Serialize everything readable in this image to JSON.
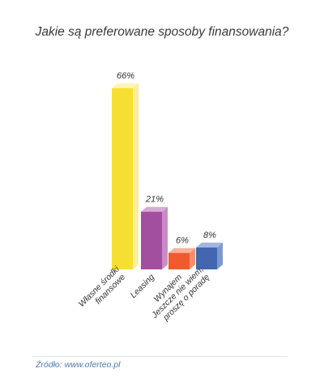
{
  "chart_data": {
    "type": "bar",
    "title": "Jakie są preferowane sposoby finansowania?",
    "categories": [
      [
        "Własne środki",
        "finansowe"
      ],
      [
        "Leasing"
      ],
      [
        "Wynajem"
      ],
      [
        "Jeszcze nie wiem,",
        "proszę o poradę"
      ]
    ],
    "values": [
      66,
      21,
      6,
      8
    ],
    "value_labels": [
      "66%",
      "21%",
      "6%",
      "8%"
    ],
    "unit": "%",
    "ylim": [
      0,
      66
    ],
    "grid": false,
    "colors": [
      {
        "front": "#f6df32",
        "side": "#fbee9c",
        "top": "#fdf4b8"
      },
      {
        "front": "#a24f9f",
        "side": "#c88bc3",
        "top": "#d8a9d4"
      },
      {
        "front": "#f05a2c",
        "side": "#f68e70",
        "top": "#f9b29e"
      },
      {
        "front": "#4466b0",
        "side": "#7d98cf",
        "top": "#a3b7de"
      }
    ]
  },
  "footer": {
    "source": "Źródło: www.oferteo.pl"
  }
}
